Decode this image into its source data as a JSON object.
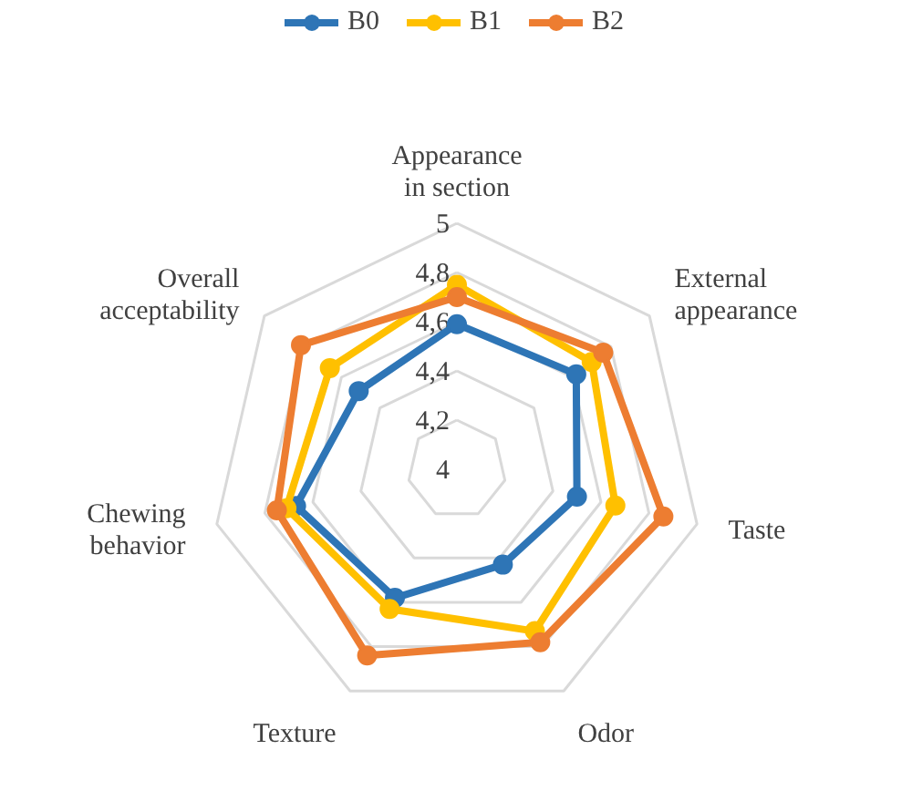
{
  "chart_data": {
    "type": "radar",
    "categories": [
      "Appearance in section",
      "External appearance",
      "Taste",
      "Odor",
      "Texture",
      "Chewing behavior",
      "Overall acceptability"
    ],
    "series": [
      {
        "name": "B0",
        "color": "#2e75b6",
        "values": [
          4.59,
          4.62,
          4.5,
          4.43,
          4.58,
          4.67,
          4.51
        ]
      },
      {
        "name": "B1",
        "color": "#ffc000",
        "values": [
          4.75,
          4.7,
          4.66,
          4.73,
          4.63,
          4.71,
          4.66
        ]
      },
      {
        "name": "B2",
        "color": "#ed7d31",
        "values": [
          4.7,
          4.76,
          4.86,
          4.78,
          4.84,
          4.75,
          4.81
        ]
      }
    ],
    "ylim": [
      4,
      5
    ],
    "yticks": [
      4,
      {
        "value": 4.2,
        "label": "4,2"
      },
      {
        "value": 4.4,
        "label": "4,4"
      },
      {
        "value": 4.6,
        "label": "4,6"
      },
      {
        "value": 4.8,
        "label": "4,8"
      },
      5
    ],
    "grid": true,
    "legend": "top",
    "marker": "circle",
    "line_style": "solid"
  }
}
